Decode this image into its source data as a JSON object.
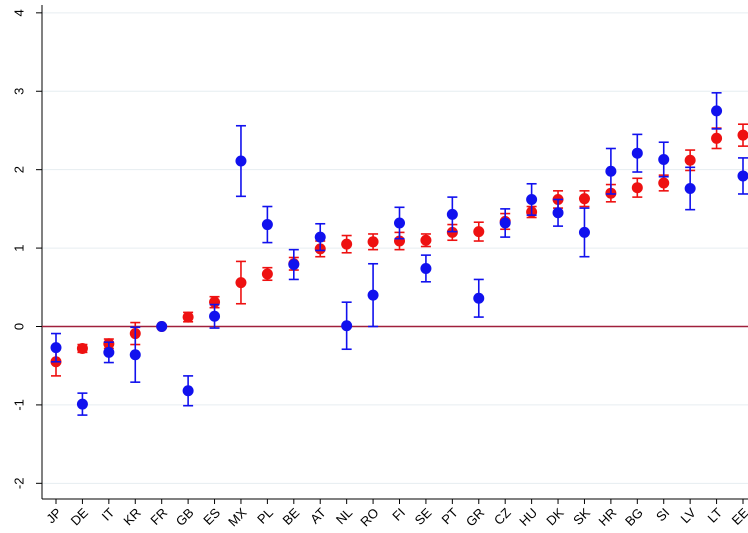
{
  "chart_data": {
    "type": "dot-errorbar",
    "categories": [
      "JP",
      "DE",
      "IT",
      "KR",
      "FR",
      "GB",
      "ES",
      "MX",
      "PL",
      "BE",
      "AT",
      "NL",
      "RO",
      "FI",
      "SE",
      "PT",
      "GR",
      "CZ",
      "HU",
      "DK",
      "SK",
      "HR",
      "BG",
      "SI",
      "LV",
      "LT",
      "EE"
    ],
    "series": [
      {
        "color": "#ee1111",
        "values": [
          -0.45,
          -0.28,
          -0.22,
          -0.09,
          0,
          0.12,
          0.31,
          0.56,
          0.67,
          0.8,
          0.99,
          1.05,
          1.08,
          1.09,
          1.1,
          1.2,
          1.21,
          1.34,
          1.46,
          1.62,
          1.63,
          1.7,
          1.77,
          1.83,
          2.12,
          2.4,
          2.44
        ],
        "errors": [
          0.18,
          0.05,
          0.06,
          0.14,
          0,
          0.06,
          0.07,
          0.27,
          0.08,
          0.08,
          0.1,
          0.11,
          0.1,
          0.11,
          0.08,
          0.1,
          0.12,
          0.1,
          0.07,
          0.11,
          0.1,
          0.11,
          0.12,
          0.1,
          0.13,
          0.13,
          0.14
        ]
      },
      {
        "color": "#1111ee",
        "values": [
          -0.27,
          -0.99,
          -0.33,
          -0.36,
          0,
          -0.82,
          0.13,
          2.11,
          1.3,
          0.79,
          1.14,
          0.01,
          0.4,
          1.32,
          0.74,
          1.43,
          0.36,
          1.32,
          1.62,
          1.45,
          1.2,
          1.98,
          2.21,
          2.13,
          1.76,
          2.75,
          1.92
        ],
        "errors": [
          0.18,
          0.14,
          0.13,
          0.35,
          0,
          0.19,
          0.15,
          0.45,
          0.23,
          0.19,
          0.17,
          0.3,
          0.4,
          0.2,
          0.17,
          0.22,
          0.24,
          0.18,
          0.2,
          0.17,
          0.31,
          0.29,
          0.24,
          0.22,
          0.27,
          0.23,
          0.23
        ]
      }
    ],
    "reference_line": 0,
    "reference_color": "#a0203c",
    "ylim": [
      -2.2,
      4.1
    ],
    "yticks": [
      -2,
      -1,
      0,
      1,
      2,
      3,
      4
    ],
    "grid": true
  }
}
